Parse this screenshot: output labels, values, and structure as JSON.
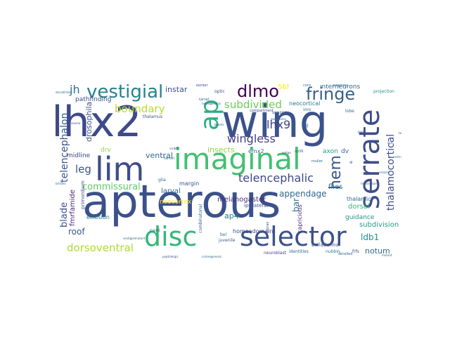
{
  "words": {
    "apterous": {
      "text": "apterous",
      "color": "#3b518b"
    },
    "lhx2": {
      "text": "lhx2",
      "color": "#3e4a89"
    },
    "wing": {
      "text": "wing",
      "color": "#3b528b"
    },
    "imaginal": {
      "text": "imaginal",
      "color": "#44bf70"
    },
    "lim": {
      "text": "lim",
      "color": "#3e4c8a"
    },
    "disc": {
      "text": "disc",
      "color": "#35b779"
    },
    "selector": {
      "text": "selector",
      "color": "#3b528b"
    },
    "serrate": {
      "text": "serrate",
      "color": "#3d4d8a"
    },
    "ap": {
      "text": "ap",
      "color": "#2ab07f"
    },
    "vestigial": {
      "text": "vestigial",
      "color": "#26828e"
    },
    "dlmo": {
      "text": "dlmo",
      "color": "#440154"
    },
    "fringe": {
      "text": "fringe",
      "color": "#355f8d"
    },
    "hem": {
      "text": "hem",
      "color": "#39558c"
    },
    "telencephalic": {
      "text": "telencephalic",
      "color": "#3e4989"
    },
    "wingless": {
      "text": "wingless",
      "color": "#433e85"
    },
    "lhx9": {
      "text": "lhx9",
      "color": "#414487"
    },
    "subdivided": {
      "text": "subdivided",
      "color": "#6ccd5a"
    },
    "boundary": {
      "text": "boundary",
      "color": "#b5de2b"
    },
    "jh": {
      "text": "jh",
      "color": "#2c728e"
    },
    "leg": {
      "text": "leg",
      "color": "#3b528b"
    },
    "commissural": {
      "text": "commissural",
      "color": "#5ec962"
    },
    "dorsoventral": {
      "text": "dorsoventral",
      "color": "#addc30"
    },
    "thalamocortical": {
      "text": "thalamocortical",
      "color": "#3e4a89"
    },
    "telencephalon": {
      "text": "telencephalon",
      "color": "#38588c"
    },
    "blade": {
      "text": "blade",
      "color": "#3b528b"
    },
    "appendage": {
      "text": "appendage",
      "color": "#31688e"
    },
    "ap4": {
      "text": "ap4",
      "color": "#2a788e"
    },
    "ldb1": {
      "text": "ldb1",
      "color": "#21918c"
    },
    "bar": {
      "text": "bar",
      "color": "#2c728e"
    },
    "roof": {
      "text": "roof",
      "color": "#3b528b"
    },
    "notum": {
      "text": "notum",
      "color": "#31688e"
    },
    "subdivision": {
      "text": "subdivision",
      "color": "#1fa187"
    },
    "dorsal": {
      "text": "dorsal",
      "color": "#35b779"
    },
    "melanogaster": {
      "text": "melanogaster",
      "color": "#472c7a"
    },
    "insects": {
      "text": "insects",
      "color": "#8fd744"
    },
    "drosophila": {
      "text": "drosophila",
      "color": "#3b528b"
    },
    "instar": {
      "text": "instar",
      "color": "#3b528b"
    },
    "ventral": {
      "text": "ventral",
      "color": "#31688e"
    },
    "flies": {
      "text": "flies",
      "color": "#2a788e"
    },
    "neocortex": {
      "text": "neocortex",
      "color": "#fde725"
    },
    "margin": {
      "text": "margin",
      "color": "#3b528b"
    },
    "larval": {
      "text": "larval",
      "color": "#31688e"
    },
    "midline": {
      "text": "midline",
      "color": "#414487"
    },
    "guidance": {
      "text": "guidance",
      "color": "#21918c"
    },
    "thalamic": {
      "text": "thalamic",
      "color": "#31688e"
    },
    "eclosion": {
      "text": "eclosion",
      "color": "#2a788e"
    },
    "fmrfamide": {
      "text": "fmrfamide",
      "color": "#482878"
    },
    "pathfinding": {
      "text": "pathfinding",
      "color": "#3b528b"
    },
    "56f": {
      "text": "56f",
      "color": "#fde725"
    },
    "interneurons": {
      "text": "interneurons",
      "color": "#31688e"
    },
    "neocortical": {
      "text": "neocortical",
      "color": "#2a788e"
    },
    "emx2": {
      "text": "emx2",
      "color": "#31688e"
    },
    "axon": {
      "text": "axon",
      "color": "#1fa187"
    },
    "dv": {
      "text": "dv",
      "color": "#31688e"
    },
    "ipsilateral": {
      "text": "ipsilateral",
      "color": "#3b528b"
    },
    "homeodomain": {
      "text": "homeodomain",
      "color": "#3e4989"
    },
    "primordium": {
      "text": "primordium",
      "color": "#3b528b"
    },
    "capricious": {
      "text": "capricious",
      "color": "#482878"
    },
    "combinatorial": {
      "text": "combinatorial",
      "color": "#31688e"
    },
    "belladonna": {
      "text": "belladonna",
      "color": "#3b528b"
    },
    "identities": {
      "text": "identities",
      "color": "#31688e"
    },
    "nubbin": {
      "text": "nubbin",
      "color": "#2a788e"
    },
    "frfs": {
      "text": "frfs",
      "color": "#3b528b"
    },
    "neuroblast": {
      "text": "neuroblast",
      "color": "#414487"
    },
    "deralled": {
      "text": "deralled",
      "color": "#31688e"
    },
    "juvenile": {
      "text": "juvenile",
      "color": "#3b528b"
    },
    "pax6": {
      "text": "pax6",
      "color": "#31688e"
    },
    "bel": {
      "text": "bel",
      "color": "#2a788e"
    },
    "glia": {
      "text": "glia",
      "color": "#31688e"
    },
    "lobe": {
      "text": "lobe",
      "color": "#31688e"
    },
    "sensory": {
      "text": "sensory",
      "color": "#3b528b"
    },
    "optic": {
      "text": "optic",
      "color": "#3b528b"
    },
    "tarsal": {
      "text": "tarsal",
      "color": "#31688e"
    },
    "thalamus": {
      "text": "thalamus",
      "color": "#3b528b"
    },
    "border": {
      "text": "border",
      "color": "#3b528b"
    },
    "projection": {
      "text": "projection",
      "color": "#21918c"
    },
    "olfactory": {
      "text": "olfactory",
      "color": "#31688e"
    },
    "cord": {
      "text": "cord",
      "color": "#2a788e"
    },
    "muller": {
      "text": "muller",
      "color": "#31688e"
    },
    "thorax": {
      "text": "thorax",
      "color": "#3b528b"
    },
    "drv": {
      "text": "drv",
      "color": "#8fd744"
    },
    "compartment": {
      "text": "compartment",
      "color": "#3e4989"
    },
    "fng": {
      "text": "fng",
      "color": "#31688e"
    },
    "imo": {
      "text": "imo",
      "color": "#2a788e"
    },
    "ap56": {
      "text": "ap56",
      "color": "#31688e"
    },
    "antige": {
      "text": "antige",
      "color": "#3b528b"
    },
    "neurogenesis": {
      "text": "neurogenesis",
      "color": "#3b528b"
    },
    "bristles": {
      "text": "bristles",
      "color": "#31688e"
    },
    "visible": {
      "text": "visible",
      "color": "#3b528b"
    },
    "dl": {
      "text": "dl",
      "color": "#31688e"
    },
    "vestigialmutant": {
      "text": "vestigialmutant",
      "color": "#31688e"
    },
    "peptidergic": {
      "text": "peptidergic",
      "color": "#3b528b"
    },
    "cortexgenesis": {
      "text": "cortexgenesis",
      "color": "#31688e"
    },
    "trypanosoma": {
      "text": "trypanosoma",
      "color": "#3b528b"
    },
    "vesicle": {
      "text": "vesicle",
      "color": "#31688e"
    },
    "prosoma": {
      "text": "prosoma",
      "color": "#3b528b"
    },
    "gangliones": {
      "text": "gangliones",
      "color": "#31688e"
    },
    "beams": {
      "text": "beams",
      "color": "#3b528b"
    },
    "dorsallimbs": {
      "text": "dorsallimbs",
      "color": "#31688e"
    },
    "ventralside": {
      "text": "ventralside",
      "color": "#2a788e"
    },
    "mutant": {
      "text": "mutant",
      "color": "#31688e"
    },
    "pupa": {
      "text": "pupa",
      "color": "#3b528b"
    },
    "tarton": {
      "text": "tarton",
      "color": "#31688e"
    },
    "tea": {
      "text": "tea",
      "color": "#3b528b"
    },
    "xyz": {
      "text": "xyz",
      "color": "#31688e"
    }
  }
}
